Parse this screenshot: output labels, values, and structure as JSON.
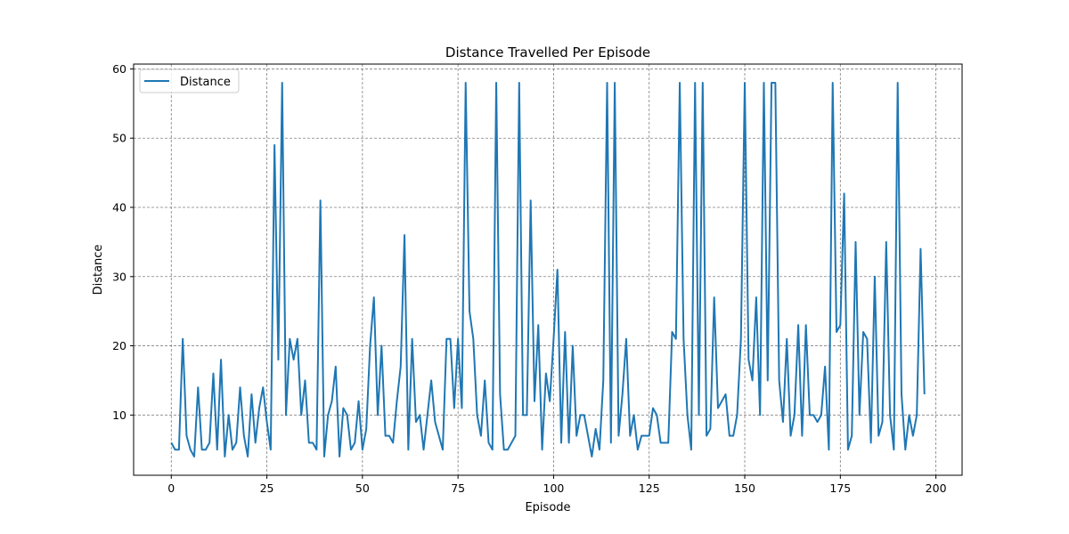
{
  "chart_data": {
    "type": "line",
    "title": "Distance Travelled Per Episode",
    "xlabel": "Episode",
    "ylabel": "Distance",
    "xlim": [
      -9.85,
      206.85
    ],
    "ylim": [
      1.3,
      60.7
    ],
    "xticks": [
      0,
      25,
      50,
      75,
      100,
      125,
      150,
      175,
      200
    ],
    "yticks": [
      10,
      20,
      30,
      40,
      50,
      60
    ],
    "grid": true,
    "legend_placement": "top-left",
    "series": [
      {
        "name": "Distance",
        "color": "#1f77b4",
        "y": [
          6,
          5,
          5,
          21,
          7,
          5,
          4,
          14,
          5,
          5,
          6,
          16,
          5,
          18,
          4,
          10,
          5,
          6,
          14,
          7,
          4,
          13,
          6,
          11,
          14,
          9,
          5,
          49,
          18,
          58,
          10,
          21,
          18,
          21,
          10,
          15,
          6,
          6,
          5,
          41,
          4,
          10,
          12,
          17,
          4,
          11,
          10,
          5,
          6,
          12,
          5,
          8,
          20,
          27,
          10,
          20,
          7,
          7,
          6,
          12,
          17,
          36,
          5,
          21,
          9,
          10,
          5,
          10,
          15,
          9,
          7,
          5,
          21,
          21,
          11,
          21,
          11,
          58,
          25,
          21,
          10,
          7,
          15,
          6,
          5,
          58,
          13,
          5,
          5,
          6,
          7,
          58,
          10,
          10,
          41,
          12,
          23,
          5,
          16,
          12,
          21,
          31,
          6,
          22,
          6,
          20,
          7,
          10,
          10,
          7,
          4,
          8,
          5,
          15,
          58,
          6,
          58,
          7,
          13,
          21,
          7,
          10,
          5,
          7,
          7,
          7,
          11,
          10,
          6,
          6,
          6,
          22,
          21,
          58,
          21,
          10,
          5,
          58,
          10,
          58,
          7,
          8,
          27,
          11,
          12,
          13,
          7,
          7,
          10,
          21,
          58,
          18,
          15,
          27,
          10,
          58,
          15,
          58,
          58,
          15,
          9,
          21,
          7,
          10,
          23,
          7,
          23,
          10,
          10,
          9,
          10,
          17,
          5,
          58,
          22,
          23,
          42,
          5,
          7,
          35,
          10,
          22,
          21,
          6,
          30,
          7,
          9,
          35,
          10,
          5,
          58,
          13,
          5,
          10,
          7,
          10,
          34,
          13
        ]
      }
    ]
  }
}
